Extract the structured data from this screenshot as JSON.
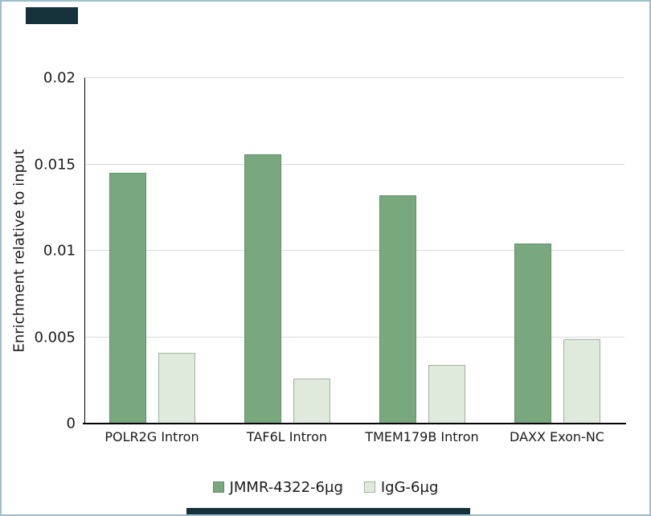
{
  "chart_data": {
    "type": "bar",
    "title": "",
    "xlabel": "",
    "ylabel": "Enrichment relative to input",
    "categories": [
      "POLR2G Intron",
      "TAF6L Intron",
      "TMEM179B Intron",
      "DAXX Exon-NC"
    ],
    "series": [
      {
        "name": "JMMR-4322-6µg",
        "values": [
          0.0145,
          0.0156,
          0.0132,
          0.0104
        ],
        "fill": "#79a87e",
        "border": "#639167"
      },
      {
        "name": "IgG-6µg",
        "values": [
          0.0041,
          0.0026,
          0.0034,
          0.0049
        ],
        "fill": "#dfe9dc",
        "border": "#9db49b"
      }
    ],
    "ylim": [
      0,
      0.02
    ],
    "yticks": [
      0,
      0.005,
      0.01,
      0.015,
      0.02
    ],
    "ytick_labels": [
      "0",
      "0.005",
      "0.01",
      "0.015",
      "0.02"
    ],
    "grid": true,
    "legend_position": "bottom"
  },
  "page": {
    "background_color": "#ffffff",
    "frame_border_color": "#9fbecd",
    "gridline_color": "#d9d9d9",
    "axis_color": "#000000",
    "text_color": "#1a1a1a"
  }
}
